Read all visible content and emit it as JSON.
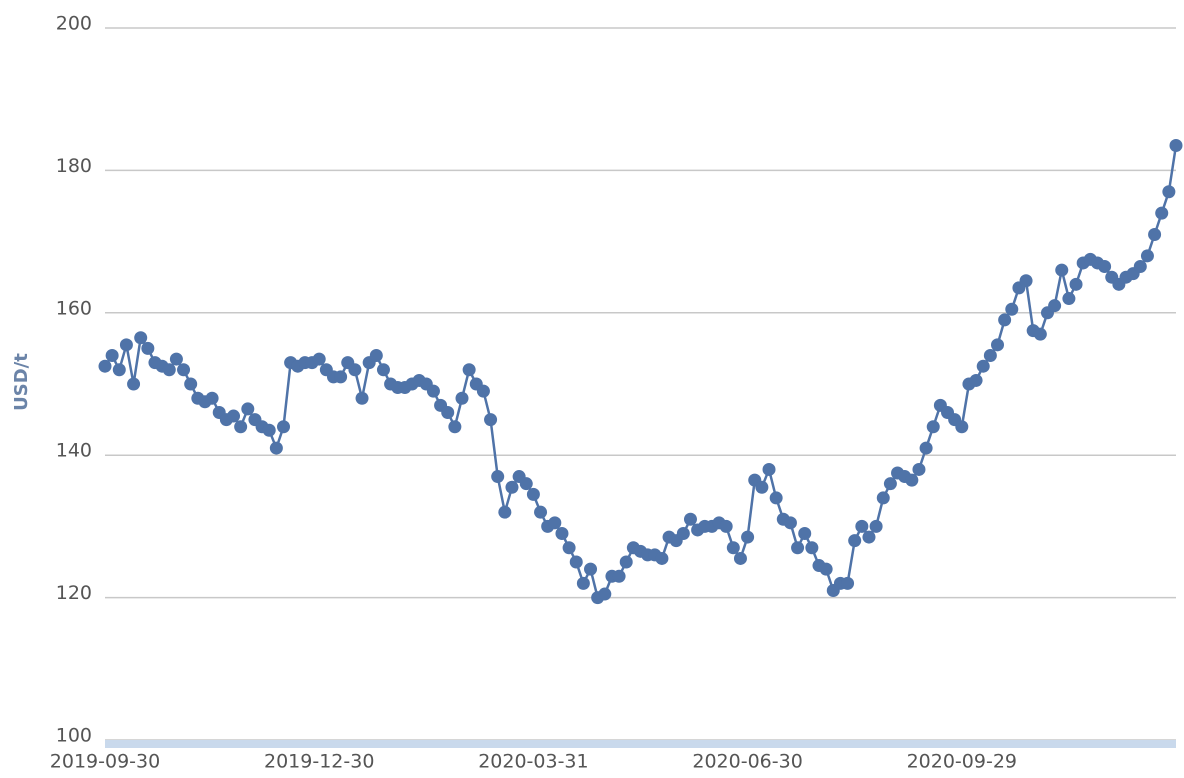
{
  "chart_data": {
    "type": "line",
    "y_label": "USD/t",
    "categories": [
      "2019-09-30",
      null,
      null,
      null,
      null,
      null,
      null,
      null,
      null,
      null,
      null,
      null,
      null,
      null,
      null,
      null,
      null,
      null,
      null,
      null,
      null,
      null,
      null,
      null,
      null,
      null,
      null,
      null,
      null,
      null,
      "2019-12-30",
      null,
      null,
      null,
      null,
      null,
      null,
      null,
      null,
      null,
      null,
      null,
      null,
      null,
      null,
      null,
      null,
      null,
      null,
      null,
      null,
      null,
      null,
      null,
      null,
      null,
      null,
      null,
      null,
      null,
      "2020-03-31",
      null,
      null,
      null,
      null,
      null,
      null,
      null,
      null,
      null,
      null,
      null,
      null,
      null,
      null,
      null,
      null,
      null,
      null,
      null,
      null,
      null,
      null,
      null,
      null,
      null,
      null,
      null,
      null,
      null,
      "2020-06-30",
      null,
      null,
      null,
      null,
      null,
      null,
      null,
      null,
      null,
      null,
      null,
      null,
      null,
      null,
      null,
      null,
      null,
      null,
      null,
      null,
      null,
      null,
      null,
      null,
      null,
      null,
      null,
      null,
      null,
      "2020-09-29",
      null,
      null,
      null,
      null,
      null,
      null,
      null,
      null,
      null,
      null,
      null,
      null,
      null,
      null,
      null,
      null,
      null,
      null,
      null,
      null,
      null,
      null,
      null,
      null,
      null,
      null,
      null,
      null,
      null,
      null
    ],
    "series": [
      {
        "color": "#4f73a8",
        "values": [
          152.5,
          154,
          152,
          155.5,
          150,
          156.5,
          155,
          153,
          152.5,
          152,
          153.5,
          152,
          150,
          148,
          147.5,
          148,
          146,
          145,
          145.5,
          144,
          146.5,
          145,
          144,
          143.5,
          141,
          144,
          153,
          152.5,
          153,
          153,
          153.5,
          152,
          151,
          151,
          153,
          152,
          148,
          153,
          154,
          152,
          150,
          149.5,
          149.5,
          150,
          150.5,
          150,
          149,
          147,
          146,
          144,
          148,
          152,
          150,
          149,
          145,
          137,
          132,
          135.5,
          137,
          136,
          134.5,
          132,
          130,
          130.5,
          129,
          127,
          125,
          122,
          124,
          120,
          120.5,
          123,
          123,
          125,
          127,
          126.5,
          126,
          126,
          125.5,
          128.5,
          128,
          129,
          131,
          129.5,
          130,
          130,
          130.5,
          130,
          127,
          125.5,
          128.5,
          136.5,
          135.5,
          138,
          134,
          131,
          130.5,
          127,
          129,
          127,
          124.5,
          124,
          121,
          122,
          122,
          128,
          130,
          128.5,
          130,
          134,
          136,
          137.5,
          137,
          136.5,
          138,
          141,
          144,
          147,
          146,
          145,
          144,
          150,
          150.5,
          152.5,
          154,
          155.5,
          159,
          160.5,
          163.5,
          164.5,
          157.5,
          157,
          160,
          161,
          166,
          162,
          164,
          167,
          167.5,
          167,
          166.5,
          165,
          164,
          165,
          165.5,
          166.5,
          168,
          171,
          174,
          177,
          183.5
        ]
      }
    ],
    "ylim": [
      100,
      200
    ],
    "yticks": [
      100,
      120,
      140,
      160,
      180,
      200
    ],
    "grid": true
  }
}
